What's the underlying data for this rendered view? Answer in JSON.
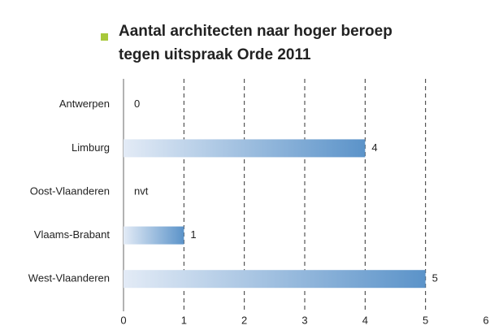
{
  "chart_data": {
    "type": "barh",
    "title": [
      "Aantal architecten naar hoger beroep",
      "tegen uitspraak Orde 2011"
    ],
    "categories": [
      "Antwerpen",
      "Limburg",
      "Oost-Vlaanderen",
      "Vlaams-Brabant",
      "West-Vlaanderen"
    ],
    "values": [
      0,
      4,
      null,
      1,
      5
    ],
    "value_labels": [
      "0",
      "4",
      "nvt",
      "1",
      "5"
    ],
    "color": "#5b93c9",
    "xlim": [
      0,
      6
    ],
    "xticks": [
      0,
      1,
      2,
      3,
      4,
      5,
      6
    ],
    "grid": true
  }
}
